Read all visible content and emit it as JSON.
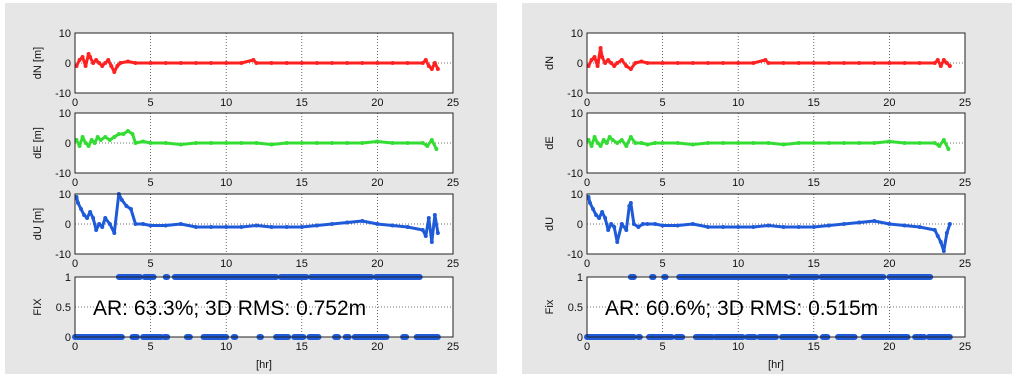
{
  "colors": {
    "background": "#e6e6e6",
    "axes": "#ffffff",
    "dN": "#ff2020",
    "dE": "#33dd33",
    "dU": "#1f5bd9",
    "fix": "#1f5bd9"
  },
  "chart_data": [
    {
      "type": "scatter",
      "panel": "left",
      "annotation": "AR: 63.3%; 3D RMS: 0.752m",
      "xlabel": "[hr]",
      "xlim": [
        0,
        25
      ],
      "xticks": [
        "0",
        "5",
        "10",
        "15",
        "20",
        "25"
      ],
      "grid": true,
      "subplots": [
        {
          "name": "dN",
          "ylabel": "dN [m]",
          "ylim": [
            -10,
            10
          ],
          "yticks": [
            "-10",
            "0",
            "10"
          ],
          "series": [
            {
              "color": "#ff2020",
              "x": [
                0.1,
                0.3,
                0.5,
                0.7,
                0.9,
                1.0,
                1.2,
                1.4,
                1.6,
                1.8,
                2.0,
                2.2,
                2.4,
                2.6,
                2.8,
                3.0,
                3.5,
                4,
                5,
                6,
                7,
                8,
                9,
                10,
                11,
                11.8,
                12,
                13,
                14,
                15,
                16,
                17,
                18,
                19,
                20,
                21,
                22,
                23,
                23.2,
                23.4,
                23.6,
                23.8,
                24.0
              ],
              "y": [
                -1,
                1,
                2,
                -1,
                3,
                2,
                0,
                1,
                0,
                -1,
                0,
                1,
                -1,
                -3,
                -1,
                0,
                0.5,
                0,
                0,
                0,
                0,
                0,
                0,
                0,
                0,
                1,
                0,
                0,
                0,
                0,
                0,
                0,
                0,
                0,
                0,
                0,
                0,
                0,
                1,
                -1,
                -2,
                0,
                -2
              ]
            }
          ]
        },
        {
          "name": "dE",
          "ylabel": "dE [m]",
          "ylim": [
            -10,
            10
          ],
          "yticks": [
            "-10",
            "0",
            "10"
          ],
          "series": [
            {
              "color": "#33dd33",
              "x": [
                0.1,
                0.3,
                0.5,
                0.7,
                0.9,
                1.1,
                1.3,
                1.5,
                1.7,
                2.0,
                2.3,
                2.6,
                2.9,
                3.2,
                3.5,
                3.8,
                4.0,
                4.5,
                5,
                6,
                7,
                8,
                9,
                10,
                11,
                12,
                13,
                14,
                15,
                16,
                17,
                18,
                19,
                20,
                21,
                22,
                23,
                23.3,
                23.6,
                23.9
              ],
              "y": [
                1,
                -1,
                2,
                0,
                -1,
                1,
                0,
                2,
                1,
                2,
                1,
                2,
                3,
                3,
                4,
                3,
                0,
                0.5,
                0,
                0,
                -0.5,
                0,
                0,
                0,
                0,
                0,
                -0.5,
                0,
                0,
                0,
                0,
                0,
                0,
                0.5,
                0,
                0,
                0,
                -1,
                1,
                -2
              ]
            }
          ]
        },
        {
          "name": "dU",
          "ylabel": "dU [m]",
          "ylim": [
            -10,
            10
          ],
          "yticks": [
            "-10",
            "0",
            "10"
          ],
          "series": [
            {
              "color": "#1f5bd9",
              "x": [
                0.1,
                0.2,
                0.4,
                0.6,
                0.8,
                1.0,
                1.2,
                1.4,
                1.6,
                1.8,
                2.0,
                2.3,
                2.6,
                2.9,
                3.1,
                3.4,
                3.7,
                4.0,
                4.5,
                5,
                6,
                7,
                8,
                9,
                10,
                11,
                12,
                13,
                14,
                15,
                16,
                17,
                18,
                19,
                20,
                21,
                22,
                23,
                23.2,
                23.4,
                23.6,
                23.8,
                24.0
              ],
              "y": [
                9,
                7,
                5,
                3,
                2,
                4,
                2,
                -2,
                0,
                -1,
                2,
                0,
                -3,
                10,
                8,
                6,
                5,
                0,
                0,
                -0.5,
                -0.5,
                0,
                -1,
                -1,
                -1,
                -1,
                -0.5,
                -1,
                -1,
                -1,
                -0.5,
                0,
                0.5,
                1,
                0,
                -0.5,
                -1,
                -2,
                -4,
                2,
                -6,
                3,
                -3
              ]
            }
          ]
        },
        {
          "name": "FIX",
          "ylabel": "FIX",
          "ylim": [
            0,
            1
          ],
          "yticks": [
            "0",
            "0.5",
            "1"
          ],
          "fix1_segments": [
            [
              2.9,
              4.3
            ],
            [
              4.6,
              5.2
            ],
            [
              6.0,
              6.1
            ],
            [
              6.6,
              13.3
            ],
            [
              13.6,
              15.3
            ],
            [
              15.6,
              19.6
            ],
            [
              19.9,
              22.8
            ]
          ],
          "fix0_segments": [
            [
              0,
              3.1
            ],
            [
              3.8,
              4.1
            ],
            [
              4.5,
              5.7
            ],
            [
              5.9,
              6.1
            ],
            [
              7.4,
              7.6
            ],
            [
              8.5,
              10.0
            ],
            [
              10.5,
              10.6
            ],
            [
              12.2,
              12.3
            ],
            [
              13.3,
              14.1
            ],
            [
              14.5,
              15.1
            ],
            [
              15.5,
              16.1
            ],
            [
              17.2,
              17.4
            ],
            [
              17.9,
              18.1
            ],
            [
              18.5,
              19.6
            ],
            [
              19.7,
              20.6
            ],
            [
              21.7,
              21.9
            ],
            [
              22.6,
              24.0
            ]
          ]
        }
      ]
    },
    {
      "type": "scatter",
      "panel": "right",
      "annotation": "AR: 60.6%; 3D RMS: 0.515m",
      "xlabel": "[hr]",
      "xlim": [
        0,
        25
      ],
      "xticks": [
        "0",
        "5",
        "10",
        "15",
        "20",
        "25"
      ],
      "grid": true,
      "subplots": [
        {
          "name": "dN",
          "ylabel": "dN",
          "ylim": [
            -10,
            10
          ],
          "yticks": [
            "-10",
            "0",
            "10"
          ],
          "series": [
            {
              "color": "#ff2020",
              "x": [
                0.1,
                0.3,
                0.5,
                0.7,
                0.9,
                1.0,
                1.2,
                1.4,
                1.6,
                1.8,
                2.0,
                2.3,
                2.6,
                2.9,
                3.2,
                3.6,
                4,
                5,
                6,
                7,
                8,
                9,
                10,
                11,
                11.8,
                12,
                13,
                14,
                15,
                16,
                17,
                18,
                19,
                20,
                21,
                22,
                23,
                23.2,
                23.4,
                23.6,
                23.8,
                24.0
              ],
              "y": [
                -1,
                1,
                2,
                -1,
                5,
                2,
                0,
                1,
                0,
                -1,
                0,
                1,
                -1,
                -2,
                0,
                0.5,
                0,
                0,
                0,
                0,
                0,
                0,
                0,
                0,
                1,
                0,
                0,
                0,
                0,
                0,
                0,
                0,
                0,
                0,
                0,
                0,
                0,
                1,
                -1,
                1,
                0,
                -1
              ]
            }
          ]
        },
        {
          "name": "dE",
          "ylabel": "dE",
          "ylim": [
            -10,
            10
          ],
          "yticks": [
            "-10",
            "0",
            "10"
          ],
          "series": [
            {
              "color": "#33dd33",
              "x": [
                0.1,
                0.3,
                0.5,
                0.7,
                0.9,
                1.1,
                1.3,
                1.5,
                1.7,
                2.0,
                2.3,
                2.6,
                2.9,
                3.2,
                3.6,
                4.0,
                4.5,
                5,
                6,
                7,
                8,
                9,
                10,
                11,
                12,
                13,
                14,
                15,
                16,
                17,
                18,
                19,
                20,
                21,
                22,
                23,
                23.3,
                23.6,
                23.9
              ],
              "y": [
                1,
                -1,
                2,
                0,
                -1,
                1,
                0,
                2,
                1,
                0,
                1,
                -1,
                2,
                0,
                0,
                -0.5,
                0,
                0,
                0,
                -0.5,
                0,
                0,
                0,
                0,
                0,
                -0.5,
                0,
                0,
                0,
                0,
                0,
                0,
                0.5,
                0,
                0,
                0,
                -1,
                1,
                -2
              ]
            }
          ]
        },
        {
          "name": "dU",
          "ylabel": "dU",
          "ylim": [
            -10,
            10
          ],
          "yticks": [
            "-10",
            "0",
            "10"
          ],
          "series": [
            {
              "color": "#1f5bd9",
              "x": [
                0.1,
                0.2,
                0.4,
                0.6,
                0.8,
                1.0,
                1.2,
                1.4,
                1.6,
                1.8,
                2.0,
                2.3,
                2.6,
                2.8,
                2.9,
                3.1,
                3.4,
                3.7,
                4.0,
                4.5,
                5,
                6,
                7,
                8,
                9,
                10,
                11,
                12,
                13,
                14,
                15,
                16,
                17,
                18,
                19,
                20,
                21,
                22,
                23,
                23.2,
                23.4,
                23.6,
                23.8,
                24.0
              ],
              "y": [
                9,
                7,
                5,
                3,
                2,
                4,
                2,
                -2,
                0,
                -1,
                -6,
                0,
                -2,
                6,
                7,
                0,
                -1,
                0,
                0,
                0,
                -0.5,
                -0.5,
                0,
                -1,
                -1,
                -1,
                -1,
                -0.5,
                -1,
                -1,
                -1,
                -0.5,
                0,
                0.5,
                1,
                0,
                -0.5,
                -1,
                -2,
                -4,
                -6,
                -9,
                -3,
                0
              ]
            }
          ]
        },
        {
          "name": "Fix",
          "ylabel": "Fix",
          "ylim": [
            0,
            1
          ],
          "yticks": [
            "0",
            "0.5",
            "1"
          ],
          "fix1_segments": [
            [
              2.9,
              3.1
            ],
            [
              4.3,
              4.4
            ],
            [
              5.1,
              5.2
            ],
            [
              6.1,
              13.2
            ],
            [
              13.5,
              15.2
            ],
            [
              15.5,
              19.6
            ],
            [
              20.0,
              22.7
            ]
          ],
          "fix0_segments": [
            [
              0,
              3.1
            ],
            [
              3.4,
              3.5
            ],
            [
              4.1,
              5.6
            ],
            [
              5.9,
              6.3
            ],
            [
              7.2,
              8.1
            ],
            [
              8.2,
              8.3
            ],
            [
              8.5,
              10.3
            ],
            [
              10.6,
              11.1
            ],
            [
              11.4,
              12.5
            ],
            [
              12.9,
              15.1
            ],
            [
              15.6,
              15.9
            ],
            [
              16.6,
              17.7
            ],
            [
              18.3,
              21.2
            ],
            [
              21.7,
              22.3
            ],
            [
              22.6,
              24.0
            ]
          ]
        }
      ]
    }
  ]
}
